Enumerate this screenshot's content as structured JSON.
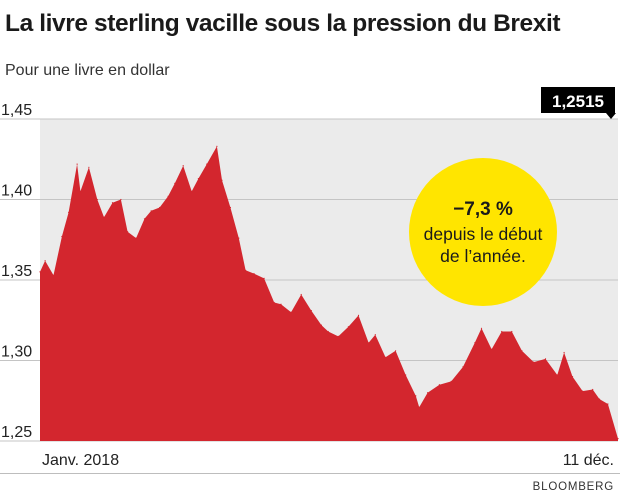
{
  "title": "La livre sterling vacille sous la pression du Brexit",
  "subtitle": "Pour une livre en dollar",
  "source": "BLOOMBERG",
  "colors": {
    "fill": "#d3262e",
    "highlight": "#ffe500",
    "plot_bg": "#ebebeb",
    "label_bg": "#000000"
  },
  "chart_data": {
    "type": "area",
    "title": "La livre sterling vacille sous la pression du Brexit",
    "subtitle": "Pour une livre en dollar",
    "xlabel": "",
    "ylabel": "",
    "x_tick_labels": [
      "Janv. 2018",
      "11 déc."
    ],
    "y_ticks": [
      "1,45",
      "1,40",
      "1,35",
      "1,30",
      "1,25"
    ],
    "y_tick_values": [
      1.45,
      1.4,
      1.35,
      1.3,
      1.25
    ],
    "ylim": [
      1.25,
      1.45
    ],
    "grid": true,
    "last_value_label": "1,2515",
    "annotation": {
      "lines": [
        "−7,3 %",
        "depuis le début",
        "de l’année."
      ]
    },
    "x": [
      "2018-01-02",
      "2018-01-05",
      "2018-01-10",
      "2018-01-15",
      "2018-01-19",
      "2018-01-24",
      "2018-01-26",
      "2018-01-31",
      "2018-02-05",
      "2018-02-09",
      "2018-02-14",
      "2018-02-19",
      "2018-02-23",
      "2018-02-28",
      "2018-03-05",
      "2018-03-09",
      "2018-03-14",
      "2018-03-19",
      "2018-03-23",
      "2018-03-28",
      "2018-04-02",
      "2018-04-06",
      "2018-04-11",
      "2018-04-17",
      "2018-04-20",
      "2018-04-25",
      "2018-04-30",
      "2018-05-04",
      "2018-05-09",
      "2018-05-15",
      "2018-05-21",
      "2018-05-25",
      "2018-05-31",
      "2018-06-06",
      "2018-06-12",
      "2018-06-18",
      "2018-06-22",
      "2018-06-28",
      "2018-07-04",
      "2018-07-10",
      "2018-07-16",
      "2018-07-20",
      "2018-07-26",
      "2018-08-01",
      "2018-08-07",
      "2018-08-13",
      "2018-08-15",
      "2018-08-20",
      "2018-08-27",
      "2018-09-03",
      "2018-09-10",
      "2018-09-17",
      "2018-09-21",
      "2018-09-27",
      "2018-10-03",
      "2018-10-09",
      "2018-10-15",
      "2018-10-22",
      "2018-10-29",
      "2018-11-05",
      "2018-11-09",
      "2018-11-14",
      "2018-11-20",
      "2018-11-26",
      "2018-11-30",
      "2018-12-05",
      "2018-12-11"
    ],
    "values": [
      1.355,
      1.362,
      1.353,
      1.377,
      1.392,
      1.422,
      1.405,
      1.42,
      1.4,
      1.389,
      1.398,
      1.4,
      1.38,
      1.376,
      1.388,
      1.393,
      1.395,
      1.402,
      1.41,
      1.421,
      1.405,
      1.413,
      1.422,
      1.433,
      1.412,
      1.395,
      1.376,
      1.356,
      1.354,
      1.351,
      1.336,
      1.335,
      1.33,
      1.341,
      1.331,
      1.322,
      1.318,
      1.315,
      1.321,
      1.328,
      1.311,
      1.316,
      1.302,
      1.306,
      1.291,
      1.278,
      1.271,
      1.28,
      1.285,
      1.287,
      1.296,
      1.311,
      1.32,
      1.307,
      1.318,
      1.318,
      1.306,
      1.299,
      1.301,
      1.291,
      1.305,
      1.29,
      1.281,
      1.282,
      1.276,
      1.273,
      1.2515
    ]
  }
}
